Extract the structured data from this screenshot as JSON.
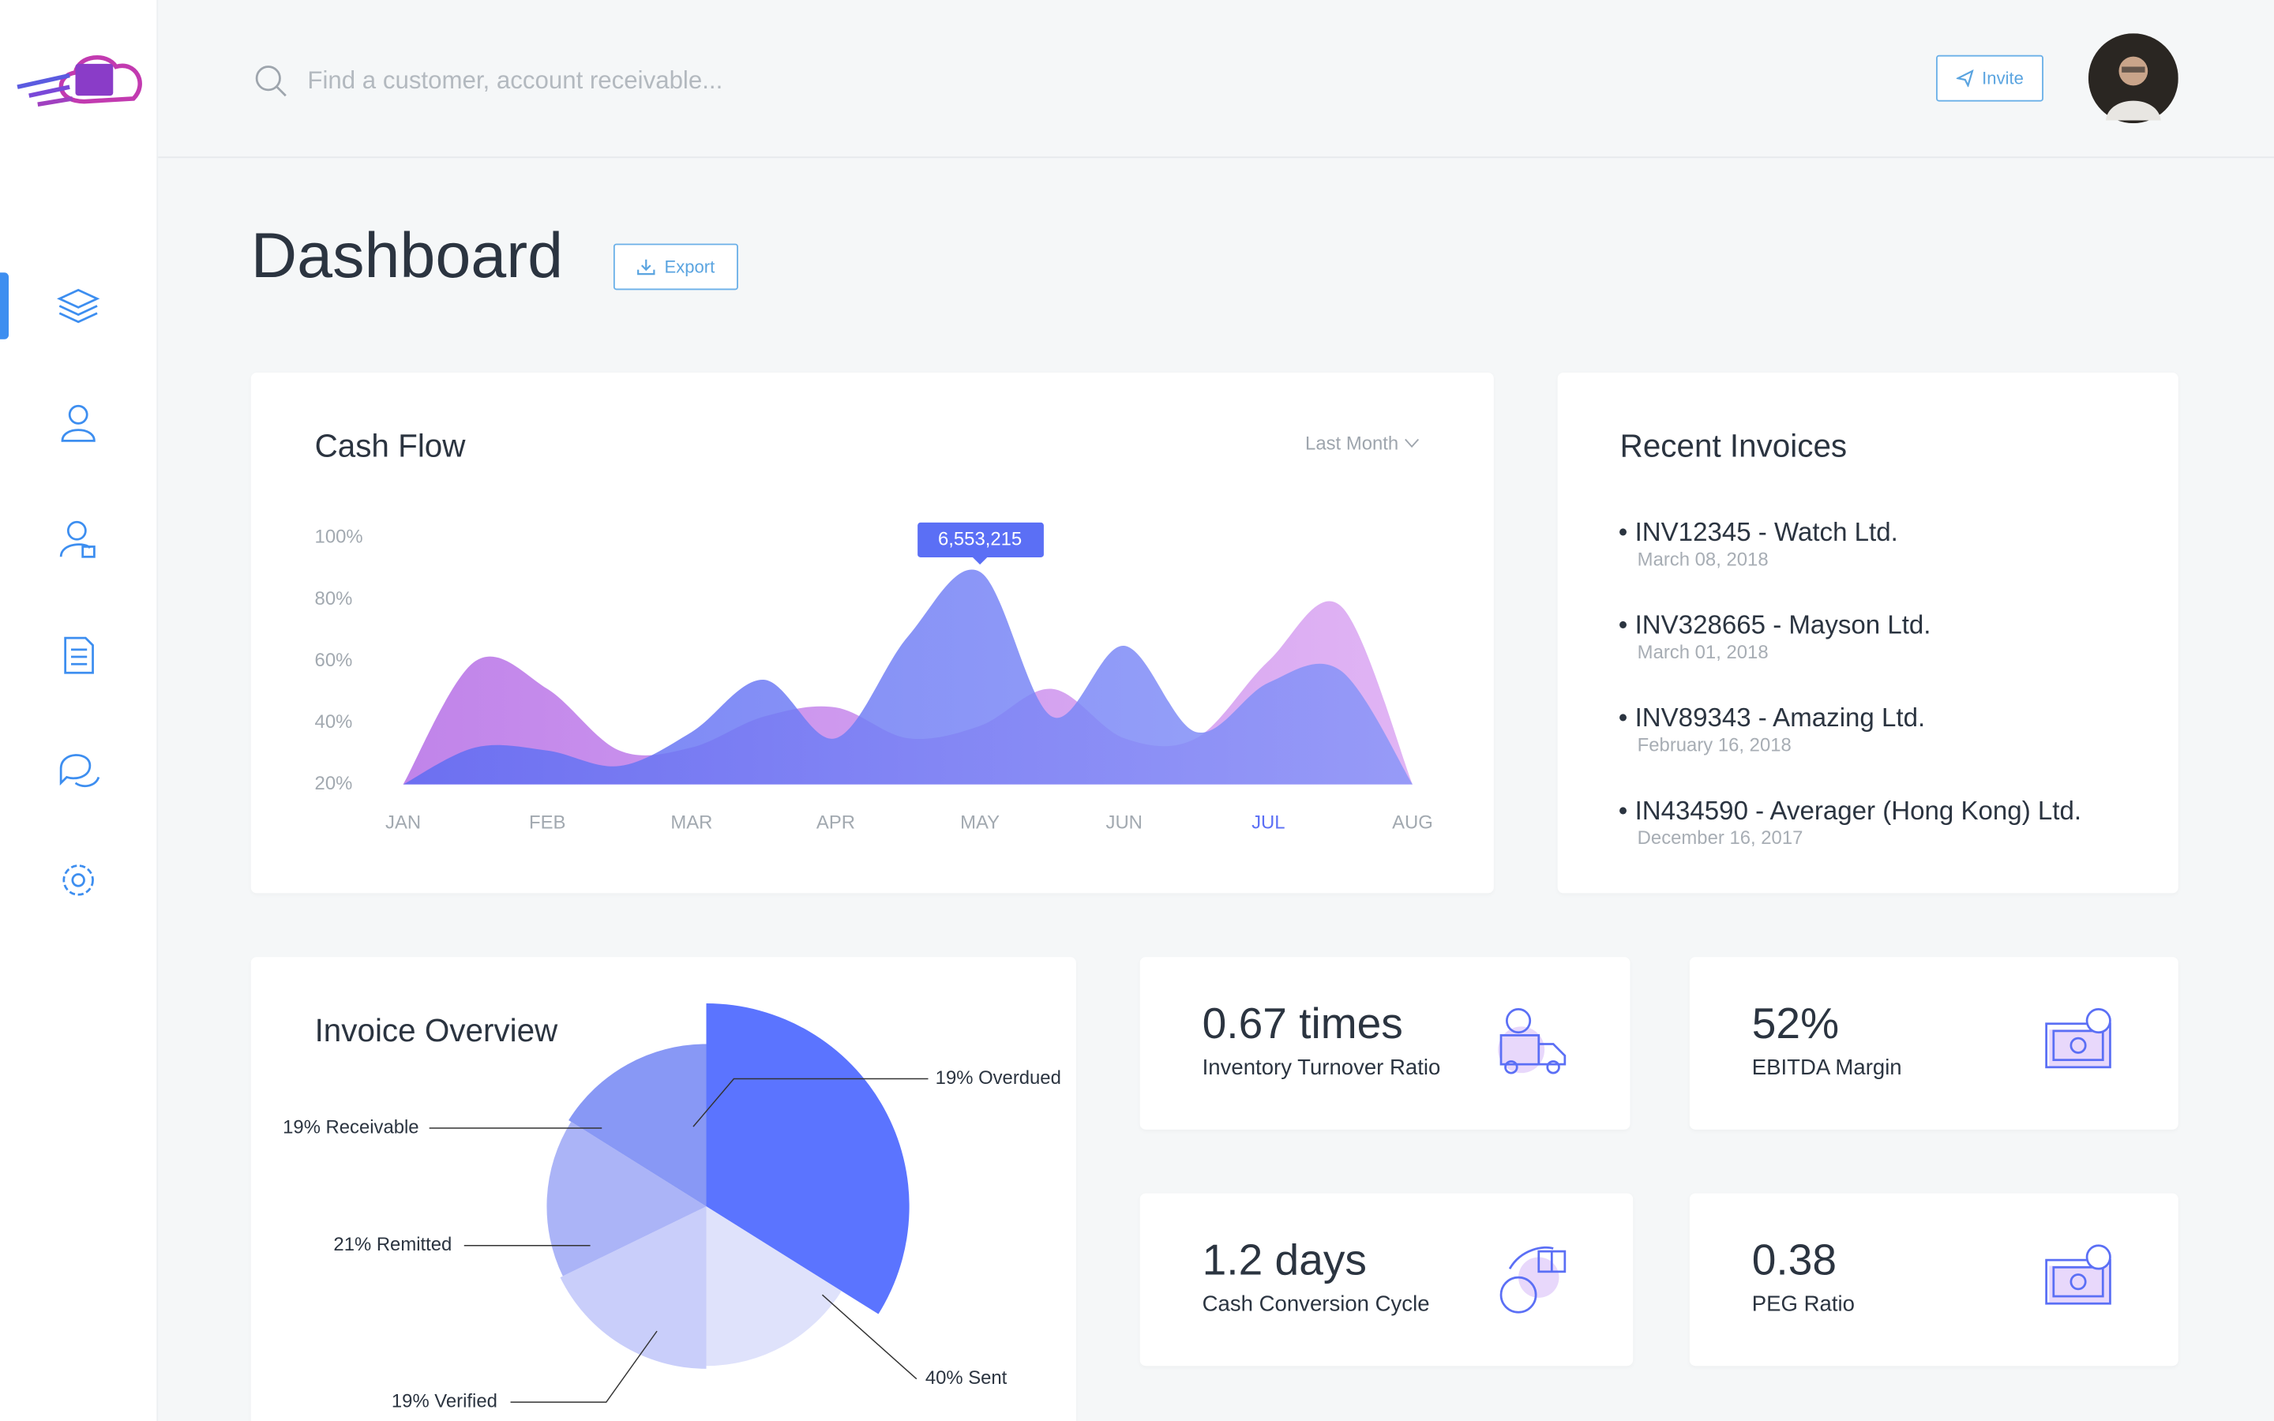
{
  "header": {
    "search_placeholder": "Find a customer, account receivable...",
    "invite": "Invite"
  },
  "page": {
    "title": "Dashboard",
    "export": "Export"
  },
  "chart_data": [
    {
      "type": "area",
      "title": "Cash Flow",
      "period": "Last Month",
      "categories": [
        "JAN",
        null,
        "FEB",
        null,
        "MAR",
        null,
        "APR",
        null,
        "MAY",
        null,
        "JUN",
        null,
        "JUL",
        null,
        "AUG"
      ],
      "highlight_index": 12,
      "ylim": [
        20,
        100
      ],
      "yticks": [
        {
          "value": 20,
          "label": "20%"
        },
        {
          "value": 40,
          "label": "40%"
        },
        {
          "value": 60,
          "label": "60%"
        },
        {
          "value": 80,
          "label": "80%"
        },
        {
          "value": 100,
          "label": "100%"
        }
      ],
      "grid": false,
      "series": [
        {
          "color": "#c98de8",
          "values": [
            20,
            60,
            51,
            31,
            32,
            42,
            45,
            35,
            39,
            51,
            35,
            35,
            60,
            78,
            20
          ]
        },
        {
          "color": "#6f82f7",
          "values": [
            20,
            32,
            31,
            26,
            37,
            54,
            35,
            68,
            89,
            42,
            65,
            37,
            53,
            57,
            20
          ]
        }
      ],
      "annotation": {
        "index": 8,
        "text": "6,553,215"
      }
    },
    {
      "type": "pie",
      "title": "Invoice Overview",
      "values": [
        40,
        19,
        21,
        19,
        19
      ],
      "labels": [
        "40% Sent",
        "19% Verified",
        "21% Remitted",
        "19% Receivable",
        "19% Overdued"
      ],
      "colors": [
        "#5b74ff",
        "#dfe2fb",
        "#c9cefa",
        "#abb4f7",
        "#8898f5"
      ],
      "exploded_index": 0
    }
  ],
  "invoices": {
    "title": "Recent Invoices",
    "items": [
      {
        "name": "INV12345 - Watch Ltd.",
        "date": "March 08, 2018"
      },
      {
        "name": "INV328665 - Mayson Ltd.",
        "date": "March 01, 2018"
      },
      {
        "name": "INV89343 - Amazing Ltd.",
        "date": "February 16, 2018"
      },
      {
        "name": "IN434590 - Averager (Hong Kong) Ltd.",
        "date": "December 16, 2017"
      }
    ]
  },
  "kpis": [
    {
      "value": "0.67 times",
      "label": "Inventory Turnover Ratio"
    },
    {
      "value": "52%",
      "label": "EBITDA Margin"
    },
    {
      "value": "1.2 days",
      "label": "Cash Conversion Cycle"
    },
    {
      "value": "0.38",
      "label": "PEG Ratio"
    }
  ]
}
